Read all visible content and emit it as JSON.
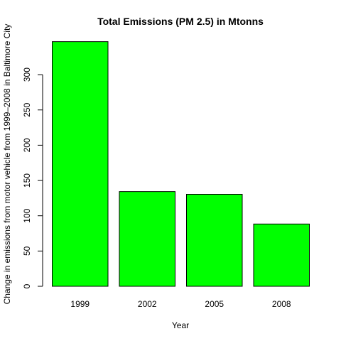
{
  "chart_data": {
    "type": "bar",
    "title": "Total Emissions (PM 2.5) in Mtonns",
    "xlabel": "Year",
    "ylabel": "Change in emissions from motor vehicle from 1999–2008 in Baltimore City",
    "categories": [
      "1999",
      "2002",
      "2005",
      "2008"
    ],
    "values": [
      346.8,
      134.3,
      130.4,
      88.3
    ],
    "ylim": [
      0,
      360
    ],
    "yticks": [
      0,
      50,
      100,
      150,
      200,
      250,
      300
    ],
    "bar_color": "#00ff00",
    "grid": false,
    "legend": "none"
  }
}
